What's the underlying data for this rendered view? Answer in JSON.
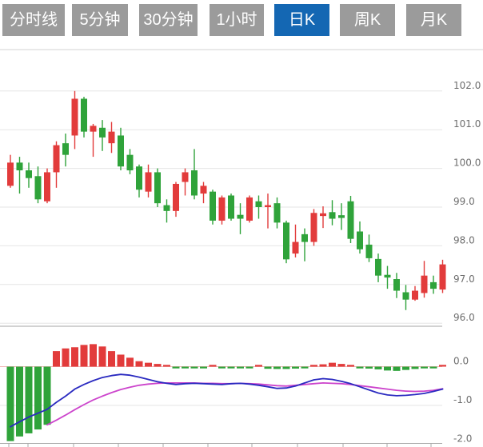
{
  "tabs": [
    {
      "label": "分时线",
      "active": false
    },
    {
      "label": "5分钟",
      "active": false
    },
    {
      "label": "30分钟",
      "active": false
    },
    {
      "label": "1小时",
      "active": false
    },
    {
      "label": "日K",
      "active": true
    },
    {
      "label": "周K",
      "active": false
    },
    {
      "label": "月K",
      "active": false
    }
  ],
  "colors": {
    "up": "#e23b3b",
    "down": "#2fa33a",
    "dif_line": "#2a2ac0",
    "dea_line": "#cc44cc",
    "tab_bg": "#9b9b9b",
    "tab_active_bg": "#1467b3",
    "grid": "#e6e6e6",
    "zero_line": "#f0b4b4",
    "axis_text": "#6e6e6e",
    "axis_line": "#aaaaaa",
    "panel_separator": "#cccccc",
    "top_separator": "#e2e2e2"
  },
  "chart_data": {
    "type": "candlestick",
    "title": "",
    "legend": [],
    "panels": [
      {
        "name": "price",
        "type": "candlestick",
        "y_tick_labels": [
          "102.0",
          "101.0",
          "100.0",
          "99.0",
          "98.0",
          "97.0",
          "96.0"
        ],
        "y_tick_values": [
          102.0,
          101.0,
          100.0,
          99.0,
          98.0,
          97.0,
          96.0
        ],
        "ylim": [
          95.8,
          102.3
        ],
        "candles_ohlc": [
          [
            99.55,
            100.35,
            99.5,
            100.15
          ],
          [
            100.15,
            100.3,
            99.35,
            99.95
          ],
          [
            99.95,
            100.15,
            99.5,
            99.75
          ],
          [
            99.8,
            100.05,
            99.1,
            99.2
          ],
          [
            99.15,
            100.0,
            99.1,
            99.9
          ],
          [
            99.9,
            100.7,
            99.5,
            100.6
          ],
          [
            100.65,
            100.9,
            100.05,
            100.35
          ],
          [
            100.85,
            102.0,
            100.5,
            101.8
          ],
          [
            101.8,
            101.85,
            100.8,
            100.95
          ],
          [
            100.95,
            101.15,
            100.3,
            101.1
          ],
          [
            101.05,
            101.25,
            100.45,
            100.8
          ],
          [
            100.65,
            101.2,
            100.4,
            100.95
          ],
          [
            100.85,
            101.05,
            99.95,
            100.05
          ],
          [
            100.35,
            100.5,
            99.85,
            99.95
          ],
          [
            100.05,
            100.1,
            99.25,
            99.45
          ],
          [
            99.4,
            100.1,
            99.25,
            99.9
          ],
          [
            99.9,
            100.0,
            99.0,
            99.1
          ],
          [
            99.05,
            99.2,
            98.6,
            98.9
          ],
          [
            98.9,
            99.65,
            98.75,
            99.6
          ],
          [
            99.65,
            100.0,
            99.3,
            99.9
          ],
          [
            99.95,
            100.5,
            99.2,
            99.3
          ],
          [
            99.35,
            99.65,
            99.1,
            99.55
          ],
          [
            99.4,
            99.45,
            98.55,
            98.65
          ],
          [
            98.65,
            99.3,
            98.55,
            99.25
          ],
          [
            99.3,
            99.35,
            98.65,
            98.7
          ],
          [
            98.8,
            99.1,
            98.3,
            98.7
          ],
          [
            98.65,
            99.3,
            98.6,
            99.25
          ],
          [
            99.15,
            99.3,
            98.7,
            99.0
          ],
          [
            99.0,
            99.35,
            98.45,
            99.05
          ],
          [
            99.1,
            99.25,
            98.45,
            98.6
          ],
          [
            98.6,
            98.65,
            97.55,
            97.65
          ],
          [
            97.8,
            98.55,
            97.7,
            98.1
          ],
          [
            98.3,
            98.45,
            97.6,
            98.1
          ],
          [
            98.1,
            98.95,
            98.0,
            98.85
          ],
          [
            98.77,
            99.02,
            98.46,
            98.84
          ],
          [
            98.87,
            99.18,
            98.53,
            98.7
          ],
          [
            98.79,
            99.1,
            98.41,
            98.72
          ],
          [
            99.15,
            99.29,
            98.07,
            98.18
          ],
          [
            98.37,
            98.63,
            97.8,
            97.91
          ],
          [
            98.03,
            98.29,
            97.58,
            97.68
          ],
          [
            97.66,
            97.8,
            97.06,
            97.23
          ],
          [
            97.25,
            97.48,
            96.89,
            97.18
          ],
          [
            97.14,
            97.3,
            96.65,
            96.84
          ],
          [
            96.8,
            96.99,
            96.34,
            96.61
          ],
          [
            96.61,
            96.96,
            96.58,
            96.84
          ],
          [
            96.78,
            97.61,
            96.66,
            97.23
          ],
          [
            97.06,
            97.23,
            96.76,
            96.89
          ],
          [
            96.87,
            97.64,
            96.78,
            97.52
          ]
        ]
      },
      {
        "name": "macd",
        "type": "macd",
        "y_tick_labels": [
          "0.0",
          "-1.0",
          "-2.0"
        ],
        "y_tick_values": [
          0.0,
          -1.0,
          -2.0
        ],
        "ylim": [
          -2.1,
          0.7
        ],
        "histogram": [
          -1.92,
          -1.8,
          -1.72,
          -1.62,
          -1.5,
          0.4,
          0.47,
          0.5,
          0.56,
          0.58,
          0.52,
          0.4,
          0.31,
          0.23,
          0.14,
          0.1,
          0.07,
          0.03,
          -0.02,
          -0.03,
          -0.02,
          -0.03,
          0.025,
          -0.02,
          -0.025,
          -0.03,
          -0.02,
          0.025,
          -0.055,
          -0.06,
          -0.06,
          -0.05,
          -0.02,
          0.04,
          0.06,
          0.1,
          0.07,
          0.035,
          -0.025,
          -0.05,
          -0.07,
          -0.1,
          -0.11,
          -0.085,
          -0.06,
          -0.035,
          -0.03,
          0.03
        ],
        "dif": [
          -1.55,
          -1.42,
          -1.3,
          -1.2,
          -1.1,
          -0.92,
          -0.76,
          -0.58,
          -0.46,
          -0.36,
          -0.28,
          -0.23,
          -0.2,
          -0.22,
          -0.27,
          -0.33,
          -0.39,
          -0.43,
          -0.46,
          -0.44,
          -0.43,
          -0.44,
          -0.45,
          -0.46,
          -0.44,
          -0.43,
          -0.45,
          -0.48,
          -0.52,
          -0.56,
          -0.55,
          -0.5,
          -0.42,
          -0.34,
          -0.31,
          -0.33,
          -0.38,
          -0.44,
          -0.52,
          -0.6,
          -0.68,
          -0.73,
          -0.75,
          -0.74,
          -0.72,
          -0.69,
          -0.64,
          -0.58
        ],
        "dea": [
          null,
          null,
          null,
          null,
          -1.5,
          -1.38,
          -1.25,
          -1.11,
          -0.98,
          -0.86,
          -0.76,
          -0.67,
          -0.59,
          -0.53,
          -0.48,
          -0.45,
          -0.43,
          -0.42,
          -0.42,
          -0.42,
          -0.42,
          -0.43,
          -0.43,
          -0.44,
          -0.44,
          -0.43,
          -0.44,
          -0.45,
          -0.47,
          -0.49,
          -0.5,
          -0.48,
          -0.46,
          -0.44,
          -0.42,
          -0.43,
          -0.44,
          -0.46,
          -0.49,
          -0.52,
          -0.55,
          -0.58,
          -0.61,
          -0.63,
          -0.64,
          -0.63,
          -0.61,
          -0.57
        ]
      }
    ]
  }
}
